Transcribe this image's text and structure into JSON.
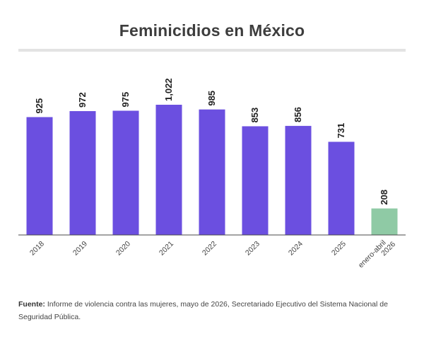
{
  "title": "Feminicidios en México",
  "source": {
    "label": "Fuente:",
    "text": "Informe de violencia contra las mujeres, mayo de 2026, Secretariado Ejecutivo del Sistema Nacional de Seguridad Pública."
  },
  "colors": {
    "bar": "#6b4fe0",
    "highlight_bar": "#8fcaa5",
    "axis": "#4a4a4a"
  },
  "chart_data": {
    "type": "bar",
    "categories": [
      "2018",
      "2019",
      "2020",
      "2021",
      "2022",
      "2023",
      "2024",
      "2025",
      "enero-abril 2026"
    ],
    "category_lines": [
      [
        "2018"
      ],
      [
        "2019"
      ],
      [
        "2020"
      ],
      [
        "2021"
      ],
      [
        "2022"
      ],
      [
        "2023"
      ],
      [
        "2024"
      ],
      [
        "2025"
      ],
      [
        "enero-abril",
        "2026"
      ]
    ],
    "values": [
      925,
      972,
      975,
      1022,
      985,
      853,
      856,
      731,
      208
    ],
    "value_labels": [
      "925",
      "972",
      "975",
      "1,022",
      "985",
      "853",
      "856",
      "731",
      "208"
    ],
    "highlight_index": 8,
    "ylim": [
      0,
      1022
    ],
    "xlabel": "",
    "ylabel": "",
    "grid": false,
    "legend": "none"
  }
}
